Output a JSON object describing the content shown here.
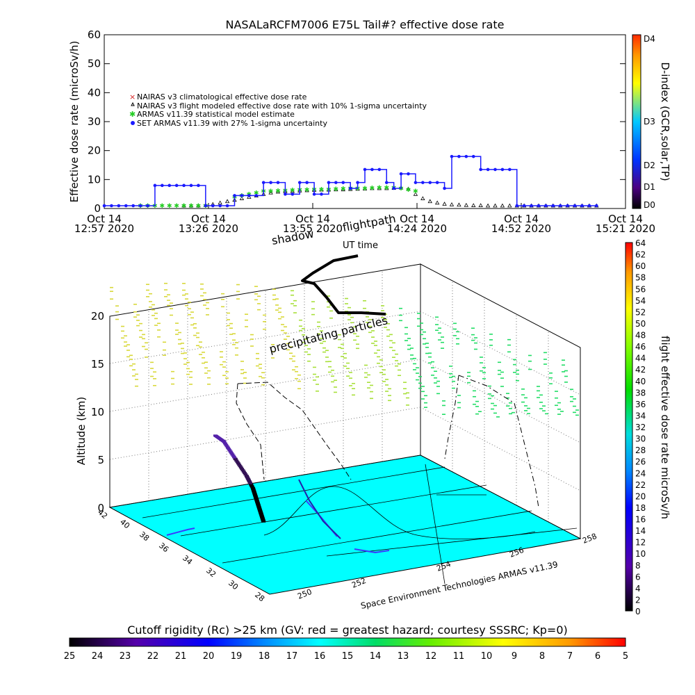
{
  "chart_data": [
    {
      "type": "line",
      "title": "NASALaRCFM7006  E75L Tail#? effective dose rate",
      "ylabel": "Effective dose rate (microSv/h)",
      "ylim": [
        0,
        60
      ],
      "yticks": [
        "0",
        "10",
        "20",
        "30",
        "40",
        "50",
        "60"
      ],
      "x_ticks": [
        {
          "line1": "Oct 14",
          "line2": "12:57 2020"
        },
        {
          "line1": "Oct 14",
          "line2": "13:26 2020"
        },
        {
          "line1": "Oct 14",
          "line2": "13:55 2020"
        },
        {
          "line1": "Oct 14",
          "line2": "14:24 2020"
        },
        {
          "line1": "Oct 14",
          "line2": "14:52 2020"
        },
        {
          "line1": "Oct 14",
          "line2": "15:21 2020"
        }
      ],
      "x_unit": "minutes after 12:57",
      "xlim": [
        0,
        144
      ],
      "legend_position": "upper-left",
      "series": [
        {
          "name": "NAIRAS v3 climatological effective dose rate",
          "color": "#d62020",
          "marker": "x",
          "x": [],
          "y": []
        },
        {
          "name": "NAIRAS v3 flight modeled effective dose rate with 10% 1-sigma uncertainty",
          "color": "#000000",
          "marker": "triangle",
          "x": [
            22,
            24,
            26,
            28,
            30,
            32,
            34,
            36,
            38,
            40,
            42,
            44,
            46,
            48,
            50,
            52,
            54,
            56,
            58,
            60,
            62,
            64,
            66,
            68,
            70,
            72,
            74,
            76,
            78,
            80,
            82,
            84,
            86,
            88,
            90,
            92,
            94,
            96,
            98,
            100,
            102,
            104,
            106,
            108,
            110,
            112,
            114,
            116,
            118,
            120,
            122,
            124,
            126,
            128,
            130,
            132,
            134,
            136
          ],
          "y": [
            0,
            0,
            0,
            0.2,
            0.5,
            1,
            1.5,
            2,
            2.5,
            3,
            3.5,
            4,
            4.5,
            4.8,
            5,
            5,
            5.2,
            5.3,
            5.4,
            5.5,
            5.5,
            5.6,
            5.6,
            5.7,
            5.8,
            5.9,
            6,
            6,
            6,
            6.1,
            6.2,
            5.8,
            4,
            2.5,
            1.5,
            1,
            0.6,
            0.4,
            0.3,
            0.2,
            0.1,
            0.1,
            0,
            0,
            0,
            0,
            0,
            0,
            0,
            0,
            0,
            0,
            0,
            0,
            0,
            0,
            0,
            0
          ]
        },
        {
          "name": "ARMAS v11.39 statistical model estimate",
          "color": "#22cc22",
          "marker": "x",
          "x": [
            10,
            12,
            14,
            16,
            18,
            20,
            22,
            24,
            26,
            28,
            36,
            38,
            40,
            42,
            44,
            46,
            48,
            50,
            52,
            54,
            56,
            58,
            60,
            62,
            64,
            66,
            68,
            70,
            72,
            74,
            76,
            78,
            80,
            82,
            84,
            86
          ],
          "y": [
            0,
            0,
            0,
            0,
            0,
            0,
            0,
            0,
            0,
            0,
            3,
            3.5,
            4,
            4.5,
            5,
            5,
            5.2,
            5.3,
            5.4,
            5.5,
            5.5,
            5.6,
            5.6,
            5.7,
            5.8,
            5.9,
            6,
            6,
            6,
            6.1,
            6.2,
            6.3,
            6.2,
            6,
            5.5,
            5
          ]
        },
        {
          "name": "SET ARMAS v11.39 with 27% 1-sigma uncertainty",
          "color": "#1a1aff",
          "marker": "dot",
          "x": [
            0,
            2,
            4,
            6,
            8,
            10,
            12,
            14,
            16,
            18,
            20,
            22,
            24,
            26,
            28,
            30,
            32,
            34,
            36,
            38,
            40,
            42,
            44,
            46,
            48,
            50,
            52,
            54,
            56,
            58,
            60,
            62,
            64,
            66,
            68,
            70,
            72,
            74,
            76,
            78,
            80,
            82,
            84,
            86,
            88,
            90,
            92,
            94,
            96,
            98,
            100,
            102,
            104,
            106,
            108,
            110,
            112,
            114,
            116,
            118,
            120,
            122,
            124,
            126,
            128,
            130,
            132,
            134,
            136
          ],
          "y": [
            0,
            0,
            0,
            0,
            0,
            0,
            0,
            7,
            7,
            7,
            7,
            7,
            7,
            7,
            0,
            0,
            0,
            0,
            3.5,
            3.5,
            3.5,
            3.5,
            8,
            8,
            8,
            4,
            4,
            8,
            8,
            4,
            4,
            8,
            8,
            8,
            6,
            8,
            12.5,
            12.5,
            12.5,
            8,
            6,
            11,
            11,
            8,
            8,
            8,
            8,
            6,
            17,
            17,
            17,
            17,
            12.5,
            12.5,
            12.5,
            12.5,
            12.5,
            0,
            0,
            0,
            0,
            0,
            0,
            0,
            0,
            0,
            0,
            0,
            0
          ]
        }
      ],
      "colorbar": {
        "label": "D-index (GCR,solar,TP)",
        "ticks": [
          "D4",
          "D3",
          "D2",
          "D1",
          "D0"
        ],
        "colors": [
          "#ff2b00",
          "#ff9900",
          "#ffff00",
          "#00c8ff",
          "#0033ff",
          "#4b0082",
          "#000000"
        ]
      }
    },
    {
      "type": "3d-scatter",
      "zlabel": "Altitude (km)",
      "zticks": [
        "0",
        "5",
        "10",
        "15",
        "20"
      ],
      "zlim": [
        0,
        20
      ],
      "x_ticks": [
        "250",
        "252",
        "254",
        "256",
        "258"
      ],
      "y_ticks": [
        "28",
        "30",
        "32",
        "34",
        "36",
        "38",
        "40",
        "42"
      ],
      "annotations": [
        "shadow",
        "flightpath",
        "UT time",
        "precipitating particles"
      ],
      "footer": "Space Environment Technologies ARMAS v11.39",
      "flightpath_points": [
        {
          "lon": 252.2,
          "lat": 36.5,
          "alt_km": 0.5
        },
        {
          "lon": 252.1,
          "lat": 36.4,
          "alt_km": 1.5
        },
        {
          "lon": 252.0,
          "lat": 36.3,
          "alt_km": 2.5
        },
        {
          "lon": 251.9,
          "lat": 36.2,
          "alt_km": 3.5
        },
        {
          "lon": 251.8,
          "lat": 36.1,
          "alt_km": 4.5
        },
        {
          "lon": 251.6,
          "lat": 36.0,
          "alt_km": 6
        },
        {
          "lon": 251.3,
          "lat": 36.0,
          "alt_km": 8
        },
        {
          "lon": 251.0,
          "lat": 36.0,
          "alt_km": 10
        },
        {
          "lon": 250.8,
          "lat": 36.1,
          "alt_km": 10.7
        }
      ],
      "colorbar": {
        "label": "flight effective dose rate microSv/h",
        "ticks": [
          "64",
          "62",
          "60",
          "58",
          "56",
          "54",
          "52",
          "50",
          "48",
          "46",
          "44",
          "42",
          "40",
          "38",
          "36",
          "34",
          "32",
          "30",
          "28",
          "26",
          "24",
          "22",
          "20",
          "18",
          "16",
          "14",
          "12",
          "10",
          "8",
          "6",
          "4",
          "2",
          "0"
        ],
        "colors": [
          "#ff0000",
          "#ff9900",
          "#ffff00",
          "#88ff00",
          "#00dd00",
          "#00dddd",
          "#0088ff",
          "#0000ff",
          "#5500aa",
          "#000000"
        ]
      }
    },
    {
      "type": "colorbar",
      "title": "Cutoff rigidity (Rc) >25 km (GV: red = greatest hazard; courtesy SSSRC; Kp=0)",
      "ticks": [
        "25",
        "24",
        "23",
        "22",
        "21",
        "20",
        "19",
        "18",
        "17",
        "16",
        "15",
        "14",
        "13",
        "12",
        "11",
        "10",
        "9",
        "8",
        "7",
        "6",
        "5"
      ],
      "colors": [
        "#000000",
        "#5500aa",
        "#0000ff",
        "#0088ff",
        "#00ffff",
        "#00dd66",
        "#66ee00",
        "#ffff00",
        "#ff9900",
        "#ff0000"
      ]
    }
  ]
}
